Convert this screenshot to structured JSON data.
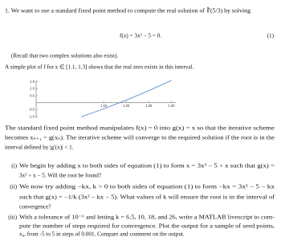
{
  "intro": "1. We want to use a standard fixed point method to compute the real solution of ∛(5/3) by solving",
  "equation": "f(x) = 3x³ − 5 = 0.",
  "equation_number": "(1)",
  "recall": "(Recall that two complex solutions also exist).",
  "plot_intro": "A simple plot of f for x ∈ [1.1, 1.3] shows that the real zero exists in this interval.",
  "chart_data": {
    "type": "line",
    "x": [
      1.1,
      1.15,
      1.2,
      1.25,
      1.3
    ],
    "series": [
      {
        "color": "#4a7fc1",
        "values": [
          -1.007,
          -0.437,
          0.184,
          0.859,
          1.591
        ]
      }
    ],
    "xlim": [
      1.0,
      1.31
    ],
    "ylim": [
      -1.1,
      1.6
    ],
    "xticks": [
      1.15,
      {
        "value": 1.2,
        "label": "1.20"
      },
      1.25,
      {
        "value": 1.3,
        "label": "1.30"
      }
    ],
    "yticks": [
      1.5,
      {
        "value": 1.0,
        "label": "1.0"
      },
      0.5,
      -0.5,
      {
        "value": -1.0,
        "label": "-1.0"
      }
    ]
  },
  "paragraph": [
    "The standard fixed point method manipulates f(x) = 0 into g(x) = x so that the iterative scheme",
    "becomes xₙ₊₁ = g(xₙ). The iterative scheme will converge to the required solution if the root is in the",
    "interval defined by |g′(x)| < 1."
  ],
  "parts": [
    {
      "label": "(i)",
      "lines": [
        "We begin by adding x to both sides of equation (1) to form x = 3x³ − 5 + x such that g(x) =",
        "3x³ + x − 5. Will the root be found?"
      ]
    },
    {
      "label": "(ii)",
      "lines": [
        "We now try adding −kx, k > 0 to both sides of equation (1) to form −kx = 3x³ − 5 − kx",
        "such that g(x) = −1/k (3x³ − kx − 5). What values of k will ensure the root is in the interval of",
        "convergence?"
      ]
    },
    {
      "label": "(iii)",
      "lines": [
        "With a tolerance of 10⁻⁶ and letting k = 6.5, 10, 18, and 26, write a MATLAB livescript to com-",
        "pute the number of steps required for convergence. Plot the output for a sample of seed points,",
        "x₀, from -5 to 5 in steps of 0.001. Compare and comment on the output."
      ]
    }
  ]
}
